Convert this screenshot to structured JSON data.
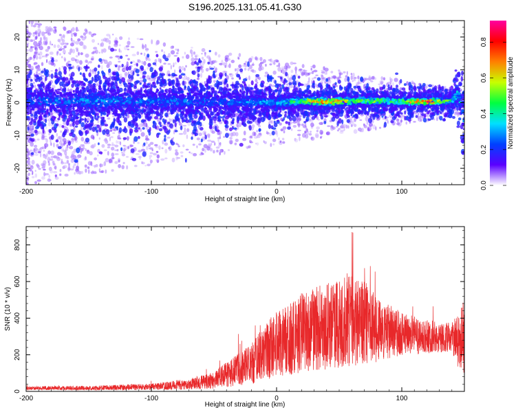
{
  "title": "S196.2025.131.05.41.G30",
  "chart_data": [
    {
      "type": "heatmap",
      "xlabel": "Height of straight line (km)",
      "ylabel": "Frequency (Hz)",
      "xlim": [
        -200,
        150
      ],
      "ylim": [
        -25,
        25
      ],
      "x_ticks": [
        -200,
        -100,
        0,
        100
      ],
      "y_ticks": [
        -20,
        -10,
        0,
        10,
        20
      ],
      "x_tick_labels": [
        "-200",
        "-100",
        "0",
        "100"
      ],
      "y_tick_labels": [
        "-20",
        "-10",
        "0",
        "10",
        "20"
      ],
      "colorbar": {
        "label": "Normalized spectral amplitude",
        "range": [
          0,
          0.92
        ],
        "ticks": [
          0,
          0.2,
          0.4,
          0.6,
          0.8
        ],
        "tick_labels": [
          "0.0",
          "0.2",
          "0.4",
          "0.6",
          "0.8"
        ],
        "colormap": [
          "#ffffff",
          "#5a00ff",
          "#0040ff",
          "#00e0ff",
          "#00ff40",
          "#c8ff00",
          "#ff8000",
          "#ff0000",
          "#ff00a0"
        ]
      },
      "ridge": {
        "x": [
          -200,
          -150,
          -100,
          -50,
          0,
          20,
          40,
          60,
          80,
          100,
          120,
          140,
          145,
          150
        ],
        "center_hz": [
          0.5,
          0.5,
          0.5,
          0.3,
          0,
          0.5,
          0.3,
          0.5,
          0.5,
          0.3,
          0.3,
          0.5,
          3,
          -6
        ],
        "peak_amplitude": [
          0.3,
          0.32,
          0.3,
          0.28,
          0.35,
          0.55,
          0.9,
          0.55,
          0.6,
          0.55,
          0.9,
          0.45,
          0.4,
          0.3
        ],
        "spread_hz": [
          3.5,
          3.5,
          3.5,
          3,
          2.2,
          1.8,
          1.6,
          1.8,
          1.6,
          1.6,
          1.4,
          1.6,
          3,
          4
        ]
      },
      "grid": false,
      "legend": "colorbar-right"
    },
    {
      "type": "line",
      "xlabel": "Height of straight line (km)",
      "ylabel": "SNR (10 * v/v)",
      "xlim": [
        -200,
        150
      ],
      "ylim": [
        0,
        900
      ],
      "x_ticks": [
        -200,
        -100,
        0,
        100
      ],
      "y_ticks": [
        0,
        200,
        400,
        600,
        800
      ],
      "x_tick_labels": [
        "-200",
        "-100",
        "0",
        "100"
      ],
      "y_tick_labels": [
        "0",
        "200",
        "400",
        "600",
        "800"
      ],
      "color": "#e8282a",
      "series": [
        {
          "envelope_x": [
            -200,
            -150,
            -100,
            -70,
            -50,
            -40,
            -30,
            -20,
            -10,
            0,
            10,
            20,
            40,
            60,
            70,
            80,
            100,
            120,
            140,
            145,
            150
          ],
          "mean": [
            18,
            18,
            25,
            40,
            60,
            90,
            120,
            150,
            210,
            260,
            290,
            320,
            360,
            380,
            370,
            340,
            310,
            300,
            295,
            280,
            300
          ],
          "amplitude": [
            10,
            12,
            18,
            30,
            45,
            70,
            90,
            110,
            150,
            180,
            200,
            220,
            240,
            250,
            230,
            180,
            120,
            90,
            80,
            160,
            200
          ]
        }
      ],
      "grid": false
    }
  ]
}
